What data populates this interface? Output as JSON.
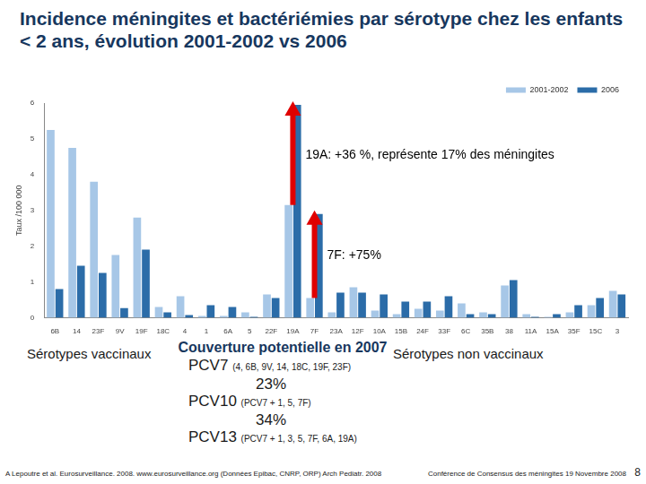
{
  "chart_data": {
    "type": "bar",
    "title": "Incidence méningites et bactériémies par sérotype chez les enfants < 2 ans, évolution 2001-2002 vs 2006",
    "y_label": "Taux /100 000",
    "categories": [
      "6B",
      "14",
      "23F",
      "9V",
      "19F",
      "18C",
      "4",
      "1",
      "6A",
      "5",
      "22F",
      "19A",
      "7F",
      "23A",
      "12F",
      "10A",
      "15B",
      "24F",
      "33F",
      "6C",
      "35B",
      "38",
      "11A",
      "15A",
      "35F",
      "15C",
      "3"
    ],
    "series": [
      {
        "name": "2001-2002",
        "color": "#a7c7e7",
        "values": [
          5.25,
          4.75,
          3.8,
          1.75,
          2.8,
          0.3,
          0.6,
          0.05,
          0.05,
          0.15,
          0.65,
          3.15,
          0.55,
          0.15,
          0.85,
          0.2,
          0.1,
          0.25,
          0.2,
          0.4,
          0.15,
          0.9,
          0.1,
          0.02,
          0.15,
          0.35,
          0.75
        ]
      },
      {
        "name": "2006",
        "color": "#2b6ca8",
        "values": [
          0.8,
          1.45,
          1.25,
          0.27,
          1.9,
          0.15,
          0.07,
          0.35,
          0.3,
          0.02,
          0.55,
          5.95,
          2.9,
          0.7,
          0.7,
          0.65,
          0.45,
          0.45,
          0.6,
          0.1,
          0.1,
          1.05,
          0.02,
          0.1,
          0.35,
          0.55,
          0.65
        ]
      }
    ],
    "ylim": [
      0,
      6
    ],
    "yticks": [
      0,
      1,
      2,
      3,
      4,
      5,
      6
    ],
    "grid": false,
    "legend": "top-right",
    "annotations": [
      {
        "text": "19A: +36 %, représente 17% des méningites",
        "category": "19A",
        "color": "#e00000"
      },
      {
        "text": "7F: +75%",
        "category": "7F",
        "color": "#e00000"
      }
    ]
  },
  "groups": {
    "left": "Sérotypes vaccinaux",
    "right": "Sérotypes non vaccinaux"
  },
  "coverage": {
    "title": "Couverture potentielle en 2007",
    "items": [
      {
        "label": "PCV7",
        "detail": "(4, 6B, 9V, 14, 18C, 19F, 23F)",
        "value": "23%"
      },
      {
        "label": "PCV10",
        "detail": "(PCV7 + 1, 5, 7F)",
        "value": "34%"
      },
      {
        "label": "PCV13",
        "detail": "(PCV7 + 1, 3, 5, 7F, 6A, 19A)"
      }
    ]
  },
  "footer": {
    "source": "A Lepoutre et al. Eurosurveillance. 2008. www.eurosurveillance.org (Données Epibac, CNRP, ORP) Arch Pediatr. 2008",
    "event": "Conférence de Consensus des méningites 19 Novembre 2008",
    "page": "8"
  }
}
